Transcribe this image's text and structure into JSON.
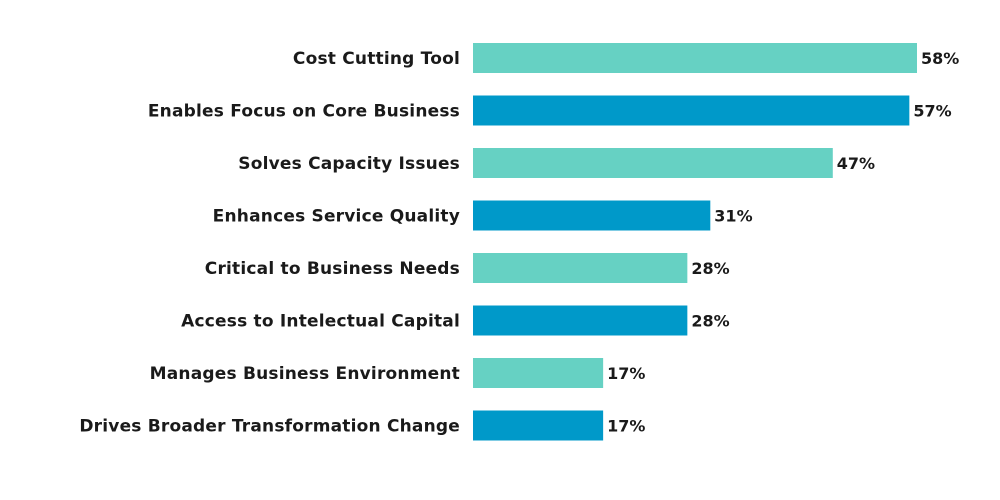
{
  "chart_data": {
    "type": "bar",
    "orientation": "horizontal",
    "categories": [
      "Cost Cutting Tool",
      "Enables Focus on Core Business",
      "Solves Capacity Issues",
      "Enhances Service Quality",
      "Critical to Business Needs",
      "Access to Intelectual Capital",
      "Manages Business Environment",
      "Drives Broader Transformation Change"
    ],
    "values": [
      58,
      57,
      47,
      31,
      28,
      28,
      17,
      17
    ],
    "value_labels": [
      "58%",
      "57%",
      "47%",
      "31%",
      "28%",
      "28%",
      "17%",
      "17%"
    ],
    "unit": "%",
    "xlim": [
      0,
      58
    ],
    "grid": false,
    "colors": [
      "#66D1C3",
      "#0099C9"
    ]
  }
}
